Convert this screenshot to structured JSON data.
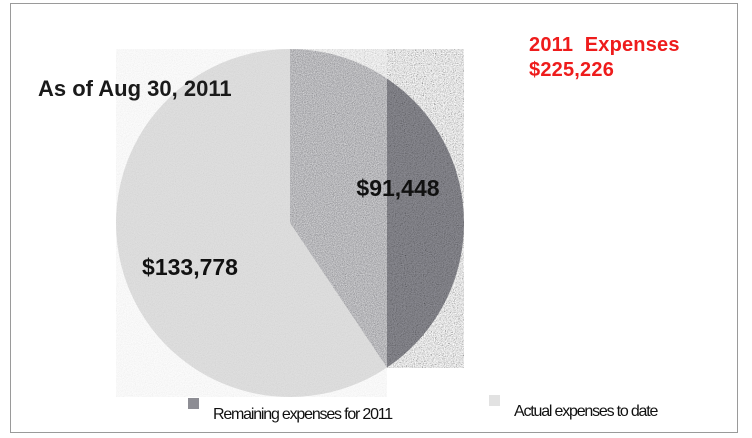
{
  "chart_data": {
    "type": "pie",
    "title_lines": [
      "2011  Expenses",
      "$225,226"
    ],
    "subtitle": "As of Aug 30, 2011",
    "slices": [
      {
        "label": "Remaining expenses for 2011",
        "value": 91448,
        "value_label": "$91,448",
        "color": "#8d8d94"
      },
      {
        "label": "Actual expenses to date",
        "value": 133778,
        "value_label": "$133,778",
        "color": "#e2e2e2"
      }
    ],
    "total": 225226,
    "legend_position": "bottom",
    "accent_color": "#ee1c1c"
  }
}
